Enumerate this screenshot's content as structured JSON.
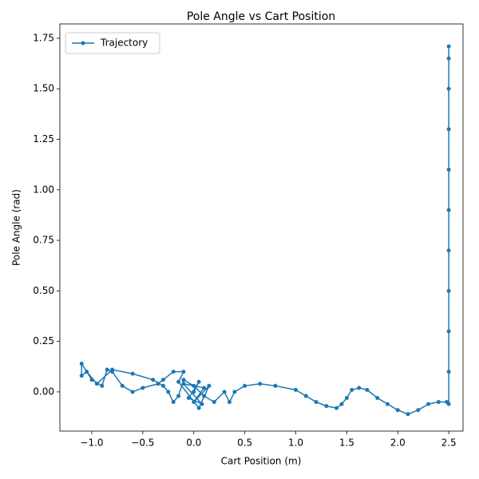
{
  "chart_data": {
    "type": "line",
    "title": "Pole Angle vs Cart Position",
    "xlabel": "Cart Position (m)",
    "ylabel": "Pole Angle (rad)",
    "legend": "upper left",
    "series": [
      {
        "name": "Trajectory",
        "color": "#1f77b4",
        "x": [
          0.0,
          0.05,
          -0.05,
          0.08,
          -0.1,
          0.1,
          0.0,
          0.15,
          0.05,
          -0.15,
          -0.1,
          -0.2,
          -0.3,
          -0.35,
          -0.5,
          -0.6,
          -0.7,
          -0.8,
          -0.85,
          -0.9,
          -1.0,
          -1.1,
          -1.1,
          -1.05,
          -0.95,
          -0.8,
          -0.6,
          -0.4,
          -0.3,
          -0.25,
          -0.2,
          -0.15,
          -0.1,
          0.0,
          0.1,
          0.2,
          0.3,
          0.35,
          0.4,
          0.5,
          0.65,
          0.8,
          1.0,
          1.1,
          1.2,
          1.3,
          1.4,
          1.45,
          1.5,
          1.55,
          1.62,
          1.7,
          1.8,
          1.9,
          2.0,
          2.1,
          2.2,
          2.3,
          2.4,
          2.48,
          2.5,
          2.5,
          2.5,
          2.5,
          2.5,
          2.5,
          2.5,
          2.5,
          2.5,
          2.5,
          2.5
        ],
        "values": [
          0.0,
          0.05,
          -0.03,
          -0.06,
          0.04,
          0.02,
          -0.05,
          0.03,
          -0.08,
          0.05,
          0.1,
          0.1,
          0.06,
          0.04,
          0.02,
          0.0,
          0.03,
          0.1,
          0.11,
          0.03,
          0.06,
          0.14,
          0.08,
          0.1,
          0.04,
          0.11,
          0.09,
          0.06,
          0.03,
          0.0,
          -0.05,
          -0.02,
          0.06,
          0.03,
          -0.02,
          -0.05,
          0.0,
          -0.05,
          0.0,
          0.03,
          0.04,
          0.03,
          0.01,
          -0.02,
          -0.05,
          -0.07,
          -0.08,
          -0.06,
          -0.03,
          0.01,
          0.02,
          0.01,
          -0.03,
          -0.06,
          -0.09,
          -0.11,
          -0.09,
          -0.06,
          -0.05,
          -0.05,
          -0.06,
          0.1,
          0.3,
          0.5,
          0.7,
          0.9,
          1.1,
          1.3,
          1.5,
          1.65,
          1.71
        ]
      }
    ],
    "xlim": [
      -1.313,
      2.64
    ],
    "ylim": [
      -0.194,
      1.821
    ],
    "xticks": [
      {
        "value": -1,
        "label": "−1.0"
      },
      {
        "value": -0.5,
        "label": "−0.5"
      },
      {
        "value": 0,
        "label": "0.0"
      },
      0.5,
      {
        "value": 1,
        "label": "1.0"
      },
      1.5,
      {
        "value": 2,
        "label": "2.0"
      },
      2.5
    ],
    "yticks": [
      {
        "value": 0,
        "label": "0.00"
      },
      0.25,
      {
        "value": 0.5,
        "label": "0.50"
      },
      0.75,
      {
        "value": 1,
        "label": "1.00"
      },
      1.25,
      {
        "value": 1.5,
        "label": "1.50"
      },
      1.75
    ]
  }
}
